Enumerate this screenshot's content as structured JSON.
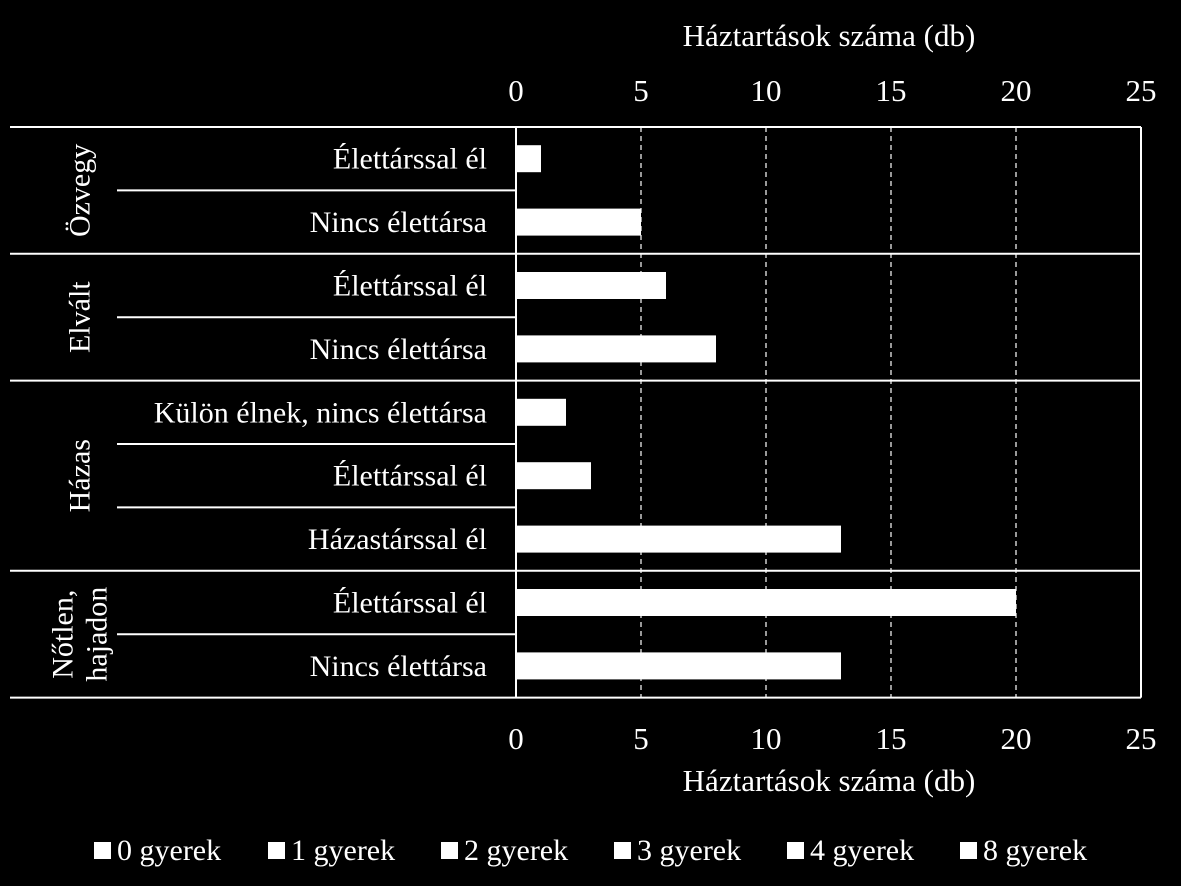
{
  "chart_data": {
    "type": "bar",
    "orientation": "horizontal",
    "stacked": true,
    "xlabel": "Háztartások száma (db)",
    "xlim": [
      0,
      25
    ],
    "xticks": [
      0,
      5,
      10,
      15,
      20,
      25
    ],
    "grid": "vertical dashed",
    "legend_position": "bottom",
    "groups": [
      {
        "name": "Özvegy",
        "categories": [
          "Élettárssal él",
          "Nincs élettársa"
        ]
      },
      {
        "name": "Elvált",
        "categories": [
          "Élettárssal él",
          "Nincs élettársa"
        ]
      },
      {
        "name": "Házas",
        "categories": [
          "Külön élnek, nincs élettársa",
          "Élettárssal él",
          "Házastárssal él"
        ]
      },
      {
        "name": "Nőtlen, hajadon",
        "name_lines": [
          "Nőtlen,",
          "hajadon"
        ],
        "categories": [
          "Élettárssal él",
          "Nincs élettársa"
        ]
      }
    ],
    "totals": [
      1,
      5,
      6,
      8,
      2,
      3,
      13,
      20,
      13
    ],
    "series": [
      {
        "name": "0 gyerek",
        "color": "#ffffff"
      },
      {
        "name": "1 gyerek",
        "color": "#ffffff"
      },
      {
        "name": "2 gyerek",
        "color": "#ffffff"
      },
      {
        "name": "3 gyerek",
        "color": "#ffffff"
      },
      {
        "name": "4 gyerek",
        "color": "#ffffff"
      },
      {
        "name": "8 gyerek",
        "color": "#ffffff"
      }
    ],
    "colors": {
      "background": "#000000",
      "bar": "#ffffff",
      "grid": "#ffffff"
    }
  }
}
